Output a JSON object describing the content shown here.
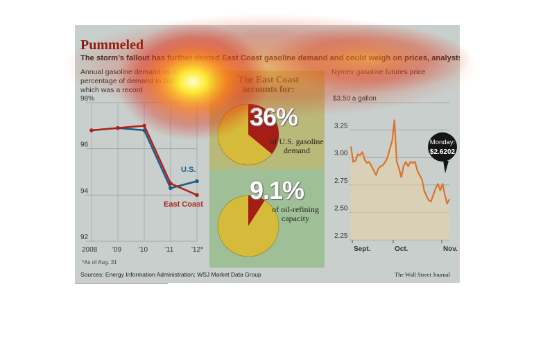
{
  "header": {
    "title": "Pummeled",
    "subtitle": "The storm’s fallout has further dented East Coast gasoline demand and could weigh on prices, analysts say."
  },
  "center": {
    "heading": "The East Coast accounts for:",
    "demand": {
      "value": 36,
      "label": "36%",
      "text": "of U.S. gasoline demand"
    },
    "refining": {
      "value": 9.1,
      "label": "9.1%",
      "text": "of oil-refining capacity"
    }
  },
  "footer": {
    "footnote": "*As of Aug. 31",
    "sources": "Sources: Energy Information Administration; WSJ Market Data Group",
    "credit": "The Wall Street Journal"
  },
  "colors": {
    "us_line": "#1f5c8c",
    "east_coast_line": "#b0241c",
    "futures_line": "#d9742a",
    "pie_base": "#d6ba3a",
    "pie_slice": "#a41e16",
    "graphic_bg": "#c9cfcc",
    "callout_bg": "#151515"
  },
  "chart_data": [
    {
      "type": "line",
      "title": "Annual gasoline demand as a percentage of demand in 2007, which was a record",
      "categories": [
        "2008",
        "'09",
        "'10",
        "'11",
        "'12*"
      ],
      "yticks": [
        "98%",
        "96",
        "94",
        "92"
      ],
      "ylim": [
        92,
        98
      ],
      "series": [
        {
          "name": "U.S.",
          "values": [
            96.8,
            96.9,
            96.8,
            94.3,
            94.6
          ]
        },
        {
          "name": "East Coast",
          "values": [
            96.8,
            96.9,
            97.0,
            94.5,
            94.0
          ]
        }
      ],
      "grid": true
    },
    {
      "type": "pie",
      "title": "The East Coast accounts for: of U.S. gasoline demand",
      "values": [
        36,
        64
      ]
    },
    {
      "type": "pie",
      "title": "The East Coast accounts for: of oil-refining capacity",
      "values": [
        9.1,
        90.9
      ]
    },
    {
      "type": "line",
      "title": "Nymex gasoline futures price",
      "xticks": [
        "Sept.",
        "Oct.",
        "Nov."
      ],
      "yticks": [
        "$3.50 a gallon",
        "3.25",
        "3.00",
        "2.75",
        "2.50",
        "2.25"
      ],
      "ylim": [
        2.25,
        3.5
      ],
      "series": [
        {
          "values": [
            3.1,
            2.96,
            2.97,
            3.03,
            3.02,
            3.05,
            2.98,
            2.95,
            2.96,
            2.92,
            2.88,
            2.84,
            2.9,
            2.92,
            2.93,
            2.96,
            3.0,
            3.08,
            3.15,
            3.34,
            2.96,
            2.9,
            2.82,
            2.92,
            2.96,
            2.92,
            2.96,
            2.95,
            2.96,
            2.88,
            2.84,
            2.8,
            2.7,
            2.65,
            2.61,
            2.6,
            2.66,
            2.72,
            2.76,
            2.7,
            2.76,
            2.66,
            2.58,
            2.62
          ]
        }
      ],
      "annotation": {
        "label": "Monday:",
        "value": "$2.6202"
      },
      "grid": true
    }
  ]
}
